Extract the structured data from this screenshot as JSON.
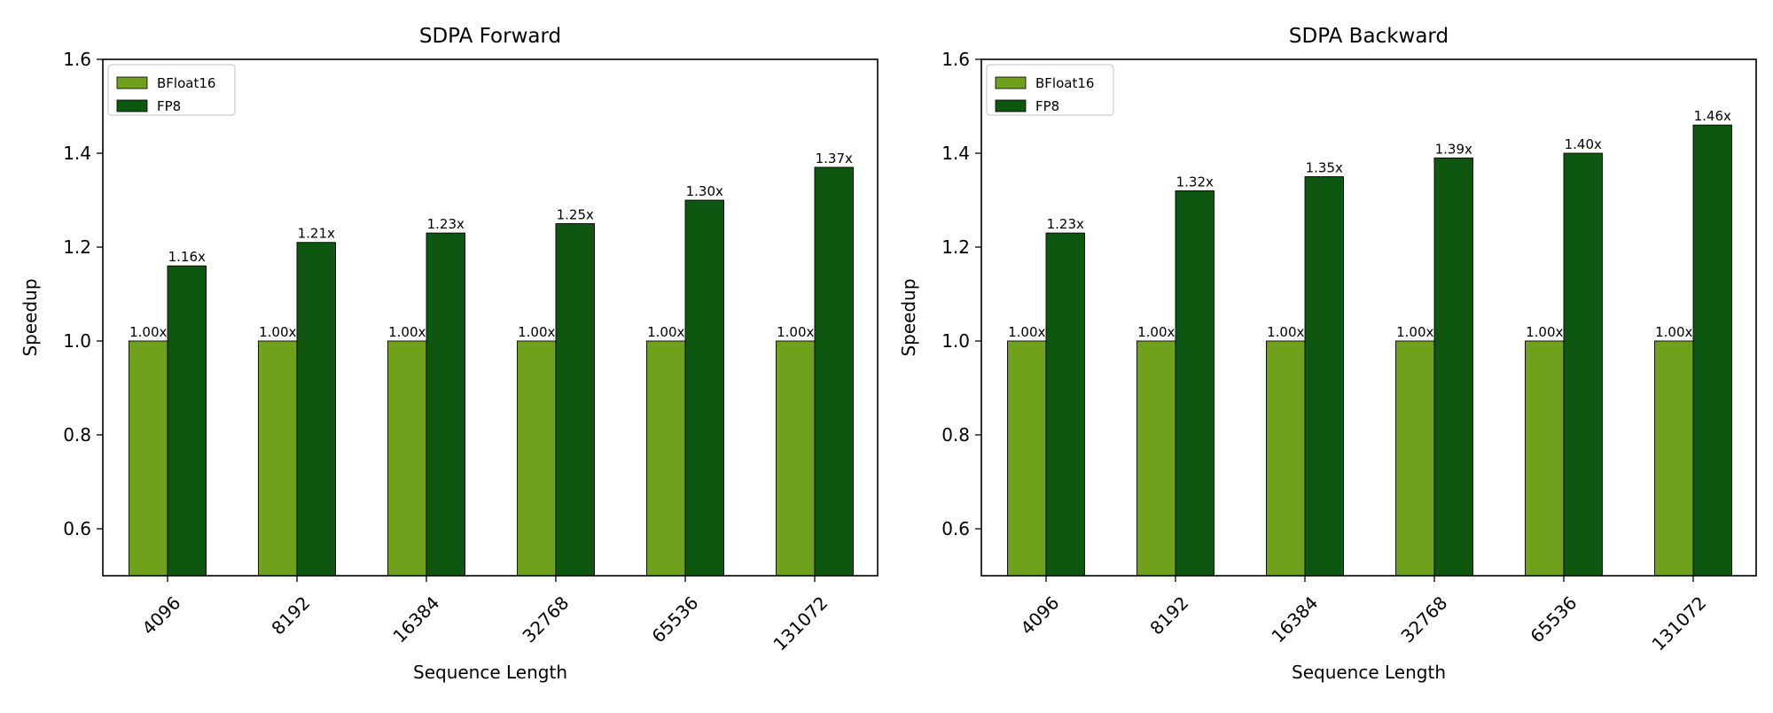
{
  "chart_data": [
    {
      "type": "bar",
      "title": "SDPA Forward",
      "xlabel": "Sequence Length",
      "ylabel": "Speedup",
      "ylim": [
        0.5,
        1.6
      ],
      "yticks": [
        "0.6",
        "0.8",
        "1.0",
        "1.2",
        "1.4",
        "1.6"
      ],
      "categories": [
        "4096",
        "8192",
        "16384",
        "32768",
        "65536",
        "131072"
      ],
      "series": [
        {
          "name": "BFloat16",
          "color": "#6fa11c",
          "values": [
            1.0,
            1.0,
            1.0,
            1.0,
            1.0,
            1.0
          ],
          "labels": [
            "1.00x",
            "1.00x",
            "1.00x",
            "1.00x",
            "1.00x",
            "1.00x"
          ]
        },
        {
          "name": "FP8",
          "color": "#0d5710",
          "values": [
            1.16,
            1.21,
            1.23,
            1.25,
            1.3,
            1.37
          ],
          "labels": [
            "1.16x",
            "1.21x",
            "1.23x",
            "1.25x",
            "1.30x",
            "1.37x"
          ]
        }
      ],
      "legend": "top-left",
      "grid": false
    },
    {
      "type": "bar",
      "title": "SDPA Backward",
      "xlabel": "Sequence Length",
      "ylabel": "Speedup",
      "ylim": [
        0.5,
        1.6
      ],
      "yticks": [
        "0.6",
        "0.8",
        "1.0",
        "1.2",
        "1.4",
        "1.6"
      ],
      "categories": [
        "4096",
        "8192",
        "16384",
        "32768",
        "65536",
        "131072"
      ],
      "series": [
        {
          "name": "BFloat16",
          "color": "#6fa11c",
          "values": [
            1.0,
            1.0,
            1.0,
            1.0,
            1.0,
            1.0
          ],
          "labels": [
            "1.00x",
            "1.00x",
            "1.00x",
            "1.00x",
            "1.00x",
            "1.00x"
          ]
        },
        {
          "name": "FP8",
          "color": "#0d5710",
          "values": [
            1.23,
            1.32,
            1.35,
            1.39,
            1.4,
            1.46
          ],
          "labels": [
            "1.23x",
            "1.32x",
            "1.35x",
            "1.39x",
            "1.40x",
            "1.46x"
          ]
        }
      ],
      "legend": "top-left",
      "grid": false
    }
  ]
}
